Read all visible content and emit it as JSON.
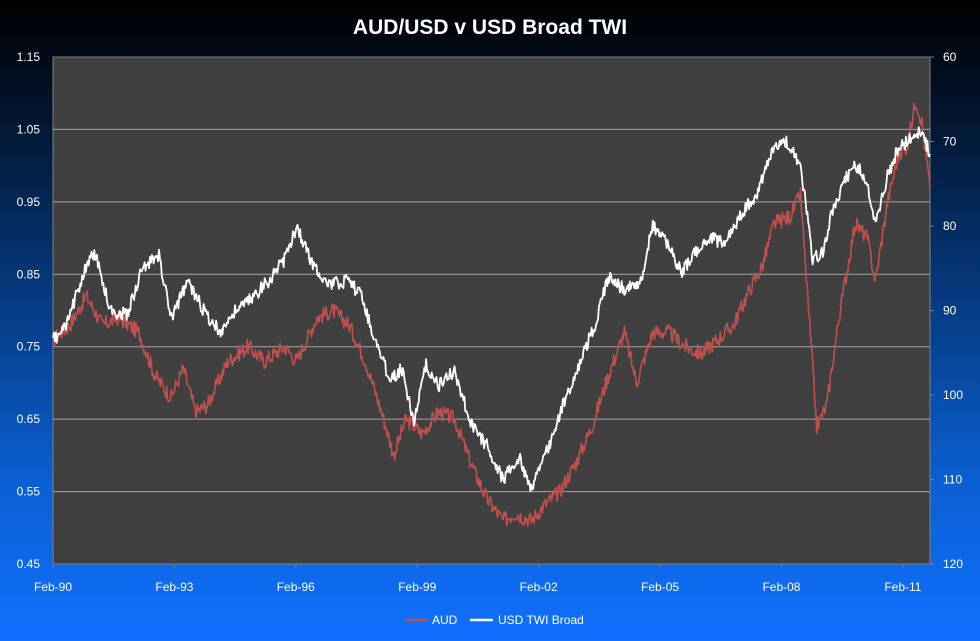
{
  "chart_data": {
    "type": "line",
    "title": "AUD/USD v USD Broad TWI",
    "colors": {
      "plot_background": "#404040",
      "gridline": "#a6a6a6",
      "aud_line": "#c0504d",
      "twi_line": "#ffffff",
      "text": "#ffffff"
    },
    "x_tick_labels": [
      "Feb-90",
      "Feb-93",
      "Feb-96",
      "Feb-99",
      "Feb-02",
      "Feb-05",
      "Feb-08",
      "Feb-11"
    ],
    "x_tick_years": [
      1990.08,
      1993.08,
      1996.08,
      1999.08,
      2002.08,
      2005.08,
      2008.08,
      2011.08
    ],
    "x_range": [
      1990.08,
      2011.75
    ],
    "left_axis": {
      "ticks": [
        "1.15",
        "1.05",
        "0.95",
        "0.85",
        "0.75",
        "0.65",
        "0.55",
        "0.45"
      ],
      "ylim": [
        0.45,
        1.15
      ]
    },
    "right_axis": {
      "ticks": [
        "60",
        "70",
        "80",
        "90",
        "100",
        "110",
        "120"
      ],
      "ylim": [
        60,
        120
      ],
      "inverted": true
    },
    "grid": true,
    "legend_position": "bottom",
    "series": [
      {
        "name": "AUD",
        "axis": "left",
        "points": [
          [
            1990.08,
            0.76
          ],
          [
            1990.5,
            0.78
          ],
          [
            1990.9,
            0.82
          ],
          [
            1991.3,
            0.78
          ],
          [
            1991.7,
            0.79
          ],
          [
            1992.2,
            0.77
          ],
          [
            1992.6,
            0.71
          ],
          [
            1993.0,
            0.68
          ],
          [
            1993.3,
            0.72
          ],
          [
            1993.6,
            0.66
          ],
          [
            1993.9,
            0.67
          ],
          [
            1994.4,
            0.73
          ],
          [
            1994.9,
            0.75
          ],
          [
            1995.3,
            0.73
          ],
          [
            1995.8,
            0.75
          ],
          [
            1996.1,
            0.73
          ],
          [
            1996.6,
            0.79
          ],
          [
            1997.0,
            0.8
          ],
          [
            1997.4,
            0.78
          ],
          [
            1997.8,
            0.73
          ],
          [
            1998.2,
            0.66
          ],
          [
            1998.5,
            0.6
          ],
          [
            1998.8,
            0.65
          ],
          [
            1999.2,
            0.63
          ],
          [
            1999.6,
            0.66
          ],
          [
            2000.0,
            0.65
          ],
          [
            2000.4,
            0.59
          ],
          [
            2000.8,
            0.54
          ],
          [
            2001.2,
            0.51
          ],
          [
            2001.5,
            0.52
          ],
          [
            2001.9,
            0.51
          ],
          [
            2002.2,
            0.53
          ],
          [
            2002.6,
            0.55
          ],
          [
            2003.0,
            0.59
          ],
          [
            2003.4,
            0.64
          ],
          [
            2003.8,
            0.71
          ],
          [
            2004.2,
            0.77
          ],
          [
            2004.5,
            0.7
          ],
          [
            2004.9,
            0.77
          ],
          [
            2005.3,
            0.77
          ],
          [
            2005.7,
            0.75
          ],
          [
            2006.1,
            0.74
          ],
          [
            2006.5,
            0.76
          ],
          [
            2006.9,
            0.78
          ],
          [
            2007.3,
            0.83
          ],
          [
            2007.6,
            0.86
          ],
          [
            2007.9,
            0.92
          ],
          [
            2008.3,
            0.93
          ],
          [
            2008.55,
            0.96
          ],
          [
            2008.75,
            0.8
          ],
          [
            2008.95,
            0.64
          ],
          [
            2009.2,
            0.67
          ],
          [
            2009.5,
            0.79
          ],
          [
            2009.9,
            0.92
          ],
          [
            2010.2,
            0.9
          ],
          [
            2010.4,
            0.84
          ],
          [
            2010.7,
            0.95
          ],
          [
            2010.95,
            1.01
          ],
          [
            2011.2,
            1.03
          ],
          [
            2011.4,
            1.09
          ],
          [
            2011.55,
            1.06
          ],
          [
            2011.75,
            0.97
          ]
        ]
      },
      {
        "name": "USD TWI Broad",
        "axis": "right",
        "points": [
          [
            1990.08,
            93.5
          ],
          [
            1990.4,
            92.0
          ],
          [
            1990.8,
            86.0
          ],
          [
            1991.1,
            83.0
          ],
          [
            1991.5,
            90.0
          ],
          [
            1991.9,
            90.5
          ],
          [
            1992.3,
            85.0
          ],
          [
            1992.7,
            83.5
          ],
          [
            1993.0,
            91.0
          ],
          [
            1993.4,
            86.5
          ],
          [
            1993.8,
            90.0
          ],
          [
            1994.2,
            92.5
          ],
          [
            1994.6,
            90.0
          ],
          [
            1995.0,
            88.5
          ],
          [
            1995.4,
            86.5
          ],
          [
            1995.8,
            84.0
          ],
          [
            1996.1,
            80.0
          ],
          [
            1996.5,
            84.5
          ],
          [
            1996.9,
            87.0
          ],
          [
            1997.3,
            86.5
          ],
          [
            1997.7,
            88.0
          ],
          [
            1998.0,
            93.0
          ],
          [
            1998.4,
            98.0
          ],
          [
            1998.7,
            97.0
          ],
          [
            1999.0,
            103.0
          ],
          [
            1999.3,
            96.5
          ],
          [
            1999.6,
            99.0
          ],
          [
            2000.0,
            97.0
          ],
          [
            2000.4,
            103.5
          ],
          [
            2000.8,
            106.0
          ],
          [
            2001.2,
            110.0
          ],
          [
            2001.6,
            107.5
          ],
          [
            2001.9,
            111.0
          ],
          [
            2002.3,
            106.5
          ],
          [
            2002.7,
            101.0
          ],
          [
            2003.1,
            96.0
          ],
          [
            2003.5,
            91.5
          ],
          [
            2003.8,
            86.0
          ],
          [
            2004.2,
            87.5
          ],
          [
            2004.6,
            86.5
          ],
          [
            2004.9,
            80.0
          ],
          [
            2005.2,
            81.5
          ],
          [
            2005.6,
            85.5
          ],
          [
            2005.9,
            83.5
          ],
          [
            2006.3,
            81.5
          ],
          [
            2006.7,
            82.0
          ],
          [
            2007.1,
            78.5
          ],
          [
            2007.5,
            76.0
          ],
          [
            2007.9,
            70.5
          ],
          [
            2008.2,
            70.0
          ],
          [
            2008.55,
            73.0
          ],
          [
            2008.7,
            78.0
          ],
          [
            2008.85,
            84.0
          ],
          [
            2009.1,
            83.0
          ],
          [
            2009.3,
            79.0
          ],
          [
            2009.6,
            75.0
          ],
          [
            2009.9,
            72.5
          ],
          [
            2010.2,
            75.0
          ],
          [
            2010.4,
            80.0
          ],
          [
            2010.7,
            74.0
          ],
          [
            2010.95,
            71.0
          ],
          [
            2011.2,
            70.0
          ],
          [
            2011.45,
            69.0
          ],
          [
            2011.6,
            69.5
          ],
          [
            2011.75,
            71.5
          ]
        ]
      }
    ]
  }
}
